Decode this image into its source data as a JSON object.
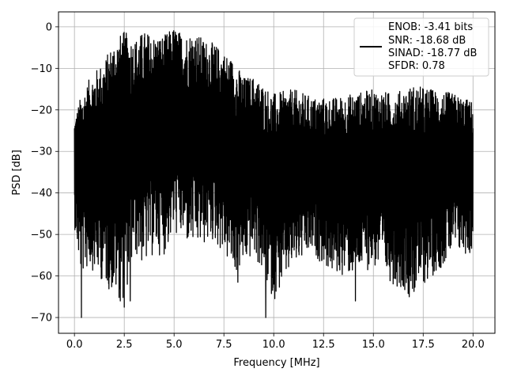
{
  "chart_data": {
    "type": "line",
    "title": "",
    "xlabel": "Frequency [MHz]",
    "ylabel": "PSD [dB]",
    "xlim": [
      -0.8,
      21.1
    ],
    "ylim": [
      -73.8,
      3.6
    ],
    "xticks": [
      0.0,
      2.5,
      5.0,
      7.5,
      10.0,
      12.5,
      15.0,
      17.5,
      20.0
    ],
    "xtick_labels": [
      "0.0",
      "2.5",
      "5.0",
      "7.5",
      "10.0",
      "12.5",
      "15.0",
      "17.5",
      "20.0"
    ],
    "yticks": [
      0,
      -10,
      -20,
      -30,
      -40,
      -50,
      -60,
      -70
    ],
    "ytick_labels": [
      "0",
      "−10",
      "−20",
      "−30",
      "−40",
      "−50",
      "−60",
      "−70"
    ],
    "grid": true,
    "legend_position": "top-right",
    "legend_lines": [
      "ENOB: -3.41 bits",
      "SNR: -18.68 dB",
      "SINAD: -18.77 dB",
      "SFDR: 0.78"
    ],
    "line_color": "#000000",
    "envelope": {
      "x": [
        0.0,
        0.3,
        0.8,
        1.5,
        2.0,
        2.5,
        3.0,
        3.5,
        4.0,
        4.5,
        5.0,
        5.5,
        6.0,
        6.5,
        7.0,
        7.5,
        8.0,
        8.5,
        9.0,
        10.0,
        11.0,
        12.0,
        13.0,
        14.0,
        15.0,
        16.0,
        17.0,
        18.0,
        19.0,
        20.0
      ],
      "upper": [
        -22,
        -17,
        -12,
        -8,
        -3,
        -1,
        -3,
        -1,
        -2,
        -2,
        0,
        -2,
        -1,
        -3,
        -4,
        -6,
        -8,
        -12,
        -12,
        -16,
        -15,
        -17,
        -17,
        -16,
        -15,
        -16,
        -14,
        -15,
        -16,
        -18
      ],
      "lower": [
        -48,
        -60,
        -58,
        -62,
        -65,
        -66,
        -55,
        -58,
        -55,
        -55,
        -50,
        -52,
        -54,
        -53,
        -52,
        -55,
        -60,
        -58,
        -55,
        -66,
        -58,
        -55,
        -60,
        -60,
        -58,
        -62,
        -65,
        -60,
        -55,
        -55
      ]
    },
    "spikes": [
      {
        "x": 0.35,
        "y": -70.0
      },
      {
        "x": 2.3,
        "y": -66.0
      },
      {
        "x": 2.5,
        "y": -67.5
      },
      {
        "x": 2.8,
        "y": -66.0
      },
      {
        "x": 8.2,
        "y": -61.5
      },
      {
        "x": 9.6,
        "y": -70.0
      },
      {
        "x": 14.1,
        "y": -66.0
      },
      {
        "x": 16.8,
        "y": -65.0
      }
    ]
  }
}
